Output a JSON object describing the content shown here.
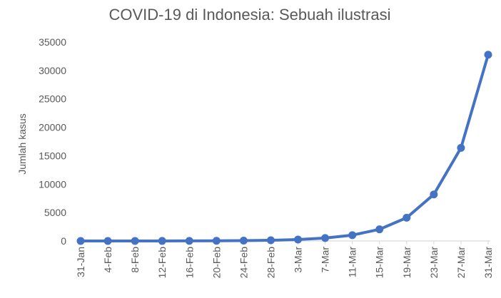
{
  "chart_data": {
    "type": "line",
    "title": "COVID-19 di Indonesia: Sebuah ilustrasi",
    "xlabel": "",
    "ylabel": "Jumlah kasus",
    "ylim": [
      0,
      35000
    ],
    "yticks": [
      0,
      5000,
      10000,
      15000,
      20000,
      25000,
      30000,
      35000
    ],
    "grid": false,
    "legend": "none",
    "colors": {
      "series": "#4472C4",
      "axis": "#D9D9D9",
      "text": "#595959"
    },
    "categories": [
      "31-Jan",
      "4-Feb",
      "8-Feb",
      "12-Feb",
      "16-Feb",
      "20-Feb",
      "24-Feb",
      "28-Feb",
      "3-Mar",
      "7-Mar",
      "11-Mar",
      "15-Mar",
      "19-Mar",
      "23-Mar",
      "27-Mar",
      "31-Mar"
    ],
    "series": [
      {
        "values": [
          1,
          2,
          4,
          8,
          16,
          32,
          64,
          128,
          256,
          512,
          1024,
          2048,
          4096,
          8192,
          16384,
          32768
        ]
      }
    ]
  }
}
